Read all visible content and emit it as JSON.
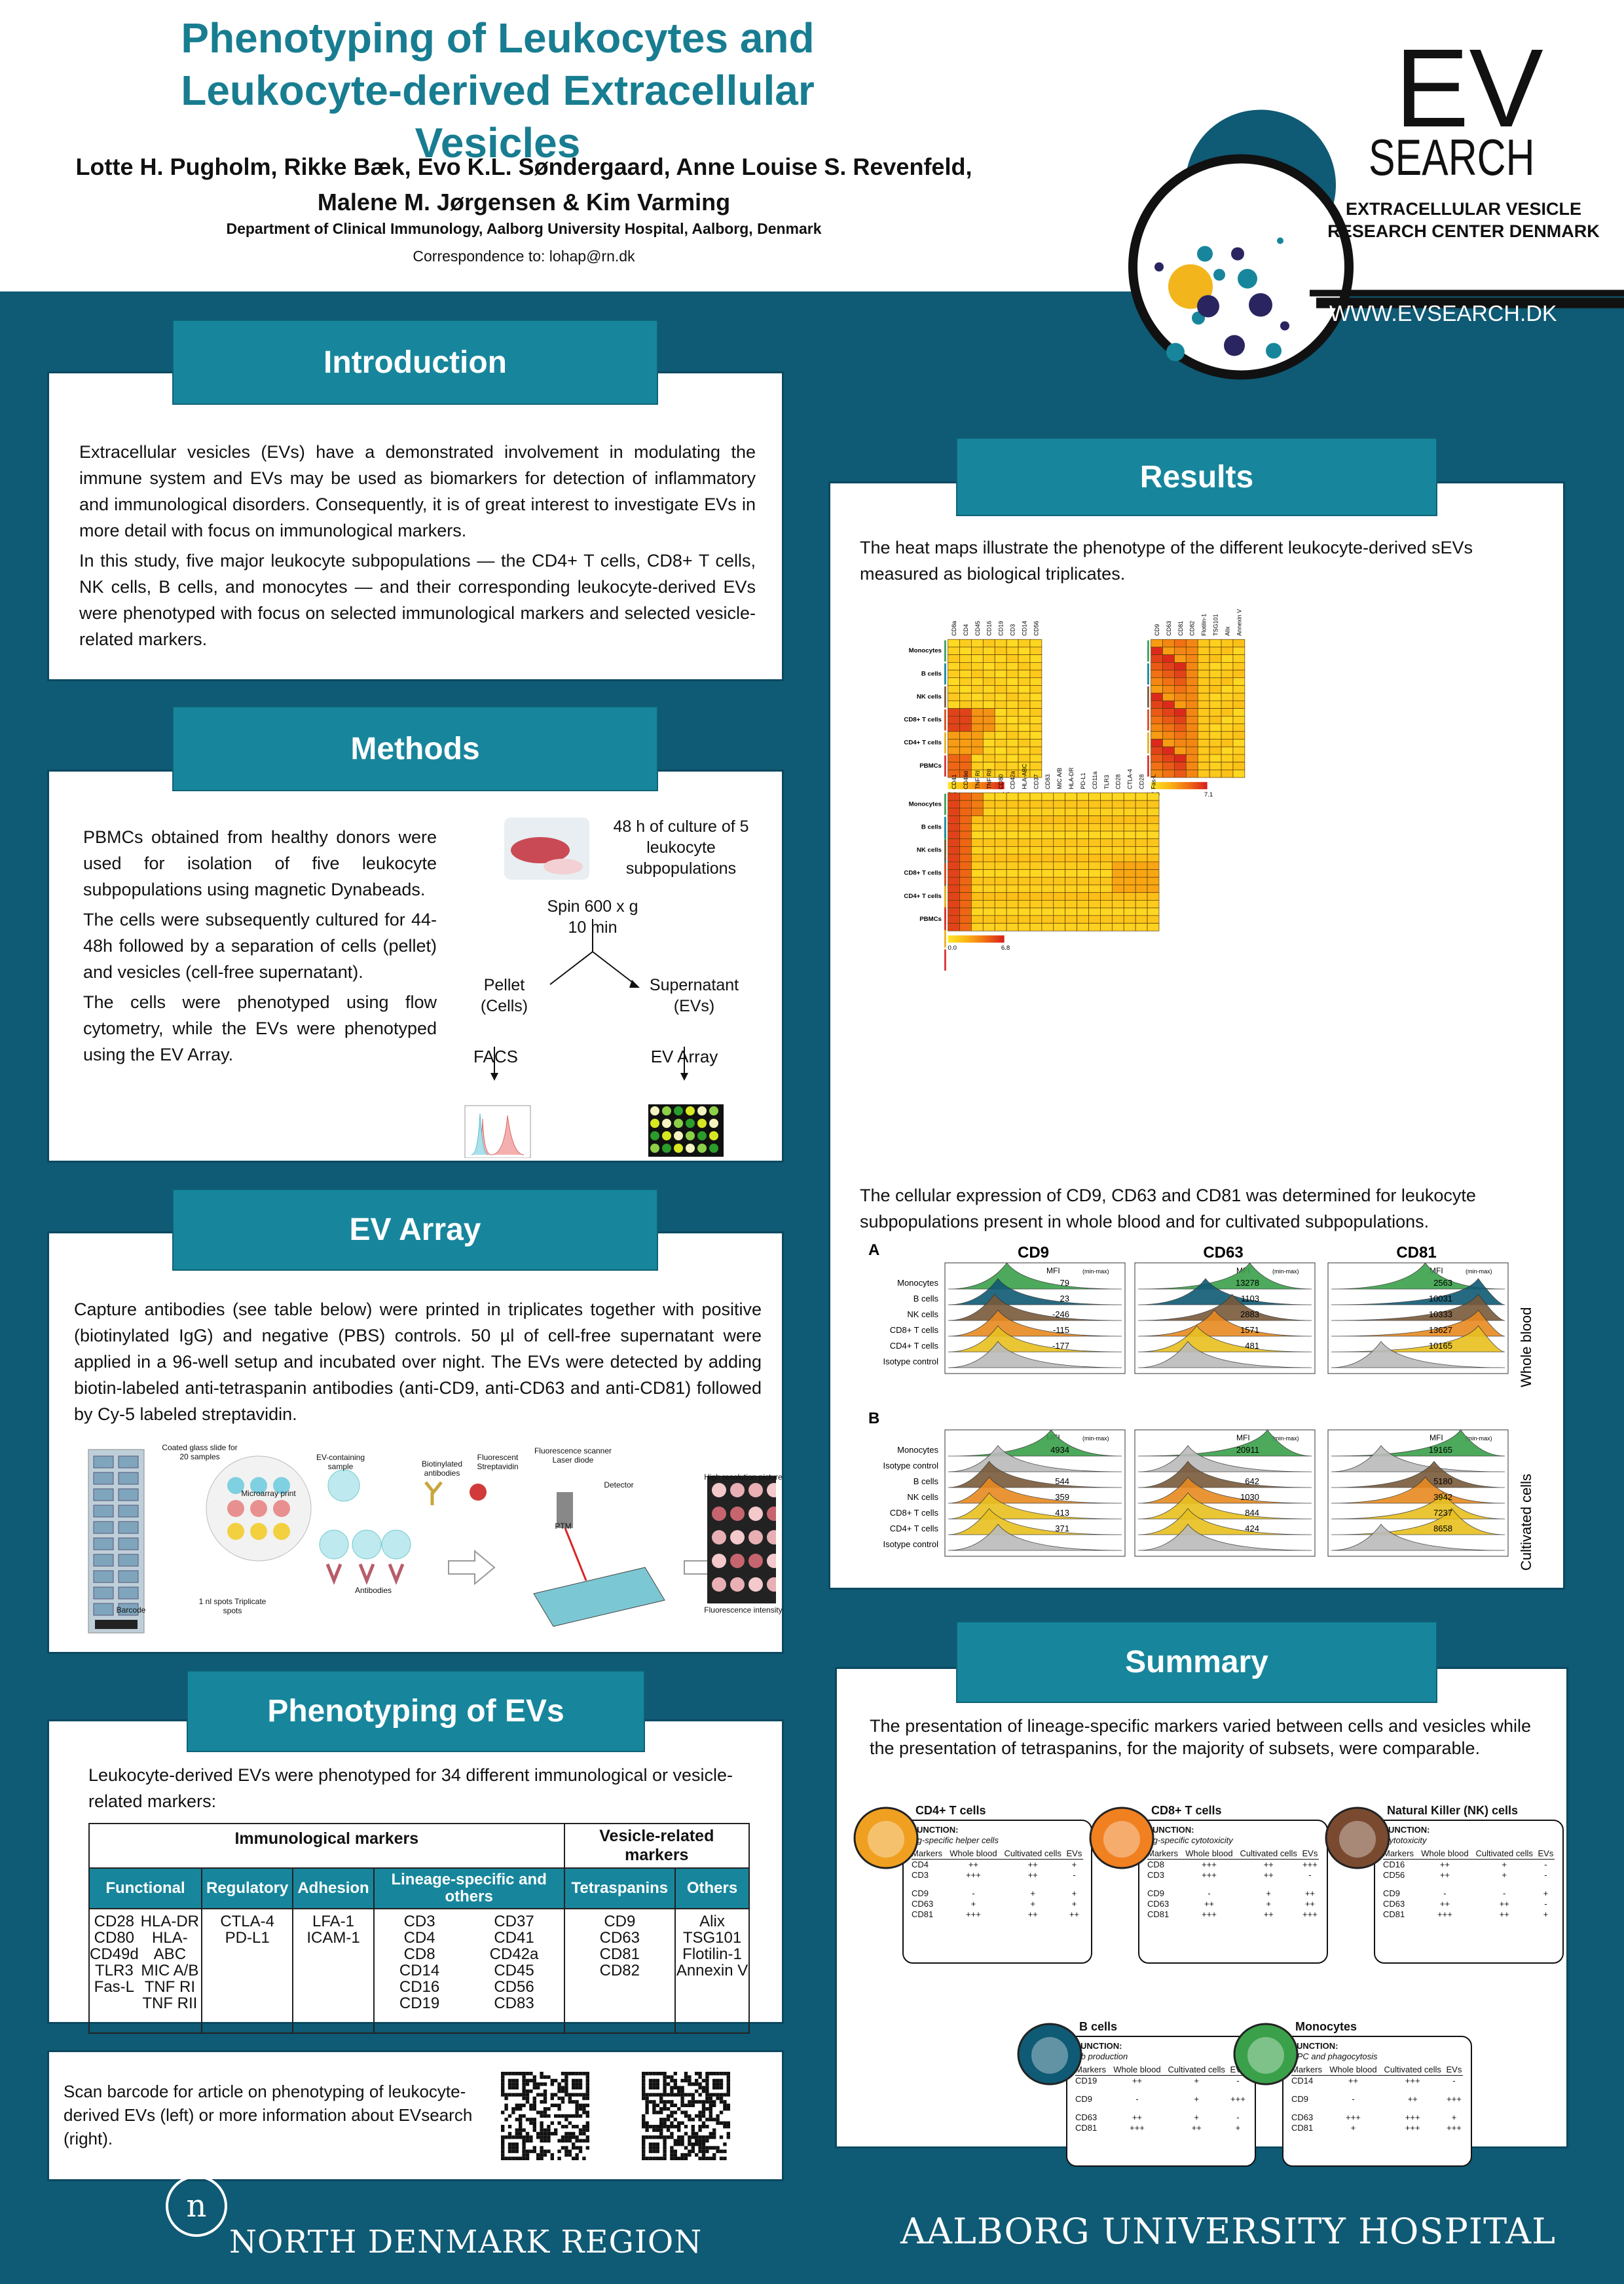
{
  "header": {
    "title": "Phenotyping of Leukocytes and Leukocyte-derived Extracellular Vesicles",
    "authors": "Lotte H. Pugholm, Rikke Bæk, Evo K.L. Søndergaard, Anne Louise S. Revenfeld, Malene M. Jørgensen & Kim Varming",
    "department": "Department of Clinical Immunology, Aalborg University Hospital, Aalborg, Denmark",
    "correspondence": "Correspondence to: lohap@rn.dk"
  },
  "logo": {
    "ev": "EV",
    "search": "SEARCH",
    "subtitle": "EXTRACELLULAR VESICLE RESEARCH CENTER DENMARK",
    "url": "WWW.EVSEARCH.DK"
  },
  "introduction": {
    "heading": "Introduction",
    "p1": "Extracellular vesicles (EVs) have a demonstrated involvement in modulating the immune system and EVs may be used as biomarkers for detection of inflammatory and immunological disorders. Consequently, it is of great interest to investigate EVs in more detail with focus on immunological markers.",
    "p2": "In this study, five major leukocyte subpopulations — the CD4+ T cells, CD8+ T cells, NK cells, B cells, and monocytes — and their corresponding leukocyte-derived EVs were phenotyped with focus on selected immunological markers and selected vesicle-related markers."
  },
  "methods": {
    "heading": "Methods",
    "p1": "PBMCs obtained from healthy donors were used for isolation of five leukocyte subpopulations using magnetic Dynabeads.",
    "p2": "The cells were subsequently cultured for 44-48h followed by a separation of cells (pellet) and vesicles (cell-free supernatant).",
    "p3": "The cells were phenotyped using flow cytometry, while the EVs were phenotyped using the EV Array.",
    "culture": "48 h of culture of 5 leukocyte subpopulations",
    "spin": "Spin 600 x g 10 min",
    "pellet": "Pellet (Cells)",
    "supernatant": "Supernatant (EVs)",
    "facs": "FACS",
    "evarray": "EV Array"
  },
  "ev_array": {
    "heading": "EV Array",
    "p1": "Capture antibodies (see table below) were printed in triplicates together with positive (biotinylated IgG) and negative (PBS) controls. 50 µl of cell-free supernatant were applied in a 96-well setup and incubated over night. The EVs were detected by adding biotin-labeled anti-tetraspanin antibodies (anti-CD9, anti-CD63 and anti-CD81) followed by Cy-5 labeled streptavidin.",
    "labels": {
      "coated": "Coated glass slide for 20 samples",
      "microarray": "Microarray print",
      "spots": "1 nl spots Triplicate spots",
      "barcode": "Barcode",
      "ev_sample": "EV-containing sample",
      "antibodies": "Antibodies",
      "biotin": "Biotinylated antibodies",
      "strept": "Fluorescent Streptavidin",
      "scanner": "Fluorescence scanner Laser diode",
      "detector": "Detector",
      "pmt": "PTM",
      "hires": "High resolution picture",
      "intensity": "Fluorescence intensity"
    }
  },
  "phenotyping": {
    "heading": "Phenotyping of EVs",
    "intro": "Leukocyte-derived EVs were phenotyped for 34 different immunological or vesicle-related markers:",
    "immuno_header": "Immunological markers",
    "vesicle_header": "Vesicle-related markers",
    "cols": [
      "Functional",
      "Regulatory",
      "Adhesion",
      "Lineage-specific and others",
      "Tetraspanins",
      "Others"
    ],
    "functional": "CD28\nCD80\nCD49d\nTLR3\nFas-L",
    "functional2": "HLA-DR\nHLA-ABC\nMIC A/B\nTNF RI\nTNF RII",
    "regulatory": "CTLA-4\nPD-L1",
    "adhesion": "LFA-1\nICAM-1",
    "lineage": "CD3\nCD4\nCD8\nCD14\nCD16\nCD19",
    "lineage2": "CD37\nCD41\nCD42a\nCD45\nCD56\nCD83",
    "tetraspanins": "CD9\nCD63\nCD81\nCD82",
    "others": "Alix\nTSG101\nFlotilin-1\nAnnexin V"
  },
  "scan": {
    "text": "Scan barcode for article on phenotyping of leukocyte-derived EVs (left) or more information about EVsearch (right)."
  },
  "results": {
    "heading": "Results",
    "p1": "The heat maps illustrate the phenotype of the different leukocyte-derived sEVs measured as biological triplicates.",
    "p2": "The cellular expression of CD9, CD63 and CD81 was determined for leukocyte subpopulations present in whole blood and for cultivated subpopulations.",
    "rows": [
      "Monocytes",
      "B cells",
      "NK cells",
      "CD8+ T cells",
      "CD4+ T cells",
      "PBMCs"
    ],
    "hm1_cols": [
      "CD8a",
      "CD4",
      "CD45",
      "CD16",
      "CD19",
      "CD3",
      "CD14",
      "CD56"
    ],
    "hm2_cols": [
      "CD9",
      "CD63",
      "CD81",
      "CD82",
      "Flotilin-1",
      "TSG101",
      "Alix",
      "Annexin V"
    ],
    "hm3_cols": [
      "CD41",
      "CD49d",
      "TNF RI",
      "TNF RII",
      "CD80",
      "CD42a",
      "HLA-ABC",
      "CD37",
      "CD83",
      "MIC A/B",
      "HLA-DR",
      "PD-L1",
      "CD11a",
      "TLR3",
      "CD28",
      "CTLA-4",
      "CD28",
      "Fas-L"
    ],
    "hm1_scale": [
      "0.0",
      "4.2"
    ],
    "hm2_scale": [
      "0.0",
      "7.1"
    ],
    "hm3_scale": [
      "0.0",
      "6.8"
    ],
    "flow": {
      "A": "A",
      "B": "B",
      "cd9": "CD9",
      "cd63": "CD63",
      "cd81": "CD81",
      "mfi": "MFI",
      "minmax": "(min-max)",
      "whole_blood": "Whole blood",
      "cultivated": "Cultivated cells",
      "rowsA": [
        "Monocytes",
        "B cells",
        "NK cells",
        "CD8+ T cells",
        "CD4+ T cells",
        "Isotype control"
      ],
      "rowsB": [
        "Monocytes",
        "Isotype control",
        "B cells",
        "NK cells",
        "CD8+ T cells",
        "CD4+ T cells",
        "Isotype control"
      ],
      "cd9A": [
        "79",
        "23",
        "-246",
        "-115",
        "-177"
      ],
      "cd63A": [
        "13278",
        "1103",
        "2883",
        "1571",
        "481"
      ],
      "cd81A": [
        "2563",
        "10031",
        "10333",
        "13627",
        "10165"
      ],
      "cd9B": [
        "4934",
        "544",
        "359",
        "413",
        "371"
      ],
      "cd63B": [
        "20911",
        "642",
        "1030",
        "844",
        "424"
      ],
      "cd81B": [
        "19165",
        "5180",
        "3942",
        "7237",
        "8658"
      ]
    }
  },
  "summary": {
    "heading": "Summary",
    "p1": "The presentation of lineage-specific markers varied between cells and vesicles while the presentation of tetraspanins, for the majority of subsets, were comparable.",
    "cards": [
      {
        "name": "CD4+ T cells",
        "function": "Ag-specific helper cells",
        "rows": [
          [
            "CD4",
            "++",
            "++",
            "+"
          ],
          [
            "CD3",
            "+++",
            "++",
            "-"
          ],
          [
            "CD9",
            "-",
            "+",
            "+"
          ],
          [
            "CD63",
            "+",
            "+",
            "+"
          ],
          [
            "CD81",
            "+++",
            "++",
            "++"
          ]
        ]
      },
      {
        "name": "CD8+ T cells",
        "function": "Ag-specific cytotoxicity",
        "rows": [
          [
            "CD8",
            "+++",
            "++",
            "+++"
          ],
          [
            "CD3",
            "+++",
            "++",
            "-"
          ],
          [
            "CD9",
            "-",
            "+",
            "++"
          ],
          [
            "CD63",
            "++",
            "+",
            "++"
          ],
          [
            "CD81",
            "+++",
            "++",
            "+++"
          ]
        ]
      },
      {
        "name": "Natural Killer (NK) cells",
        "function": "Cytotoxicity",
        "rows": [
          [
            "CD16",
            "++",
            "+",
            "-"
          ],
          [
            "CD56",
            "++",
            "+",
            "-"
          ],
          [
            "CD9",
            "-",
            "-",
            "+"
          ],
          [
            "CD63",
            "++",
            "++",
            "-"
          ],
          [
            "CD81",
            "+++",
            "++",
            "+"
          ]
        ]
      },
      {
        "name": "B cells",
        "function": "Ab production",
        "rows": [
          [
            "CD19",
            "++",
            "+",
            "-"
          ],
          [
            "CD9",
            "-",
            "+",
            "+++"
          ],
          [
            "CD63",
            "++",
            "+",
            "-"
          ],
          [
            "CD81",
            "+++",
            "++",
            "+"
          ]
        ]
      },
      {
        "name": "Monocytes",
        "function": "APC and phagocytosis",
        "rows": [
          [
            "CD14",
            "++",
            "+++",
            "-"
          ],
          [
            "CD9",
            "-",
            "++",
            "+++"
          ],
          [
            "CD63",
            "+++",
            "+++",
            "+"
          ],
          [
            "CD81",
            "+",
            "+++",
            "+++"
          ]
        ]
      }
    ],
    "col_markers": "Markers",
    "col_whole": "Whole blood",
    "col_cult": "Cultivated cells",
    "col_evs": "EVs",
    "function_label": "FUNCTION:"
  },
  "footer": {
    "left": "NORTH DENMARK REGION",
    "right": "AALBORG UNIVERSITY HOSPITAL"
  }
}
